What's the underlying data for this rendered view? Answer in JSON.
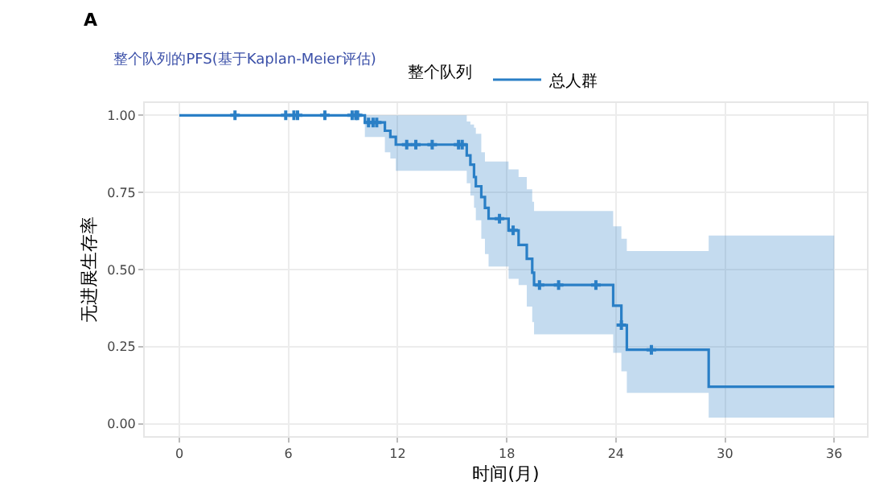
{
  "chart_data": {
    "type": "step",
    "title": "整个队列的PFS(基于Kaplan-Meier评估)",
    "xlabel": "时间(月)",
    "ylabel": "无进展生存率",
    "legend_title": "整个队列",
    "legend": "top",
    "grid": true,
    "annotations": [
      "A"
    ],
    "xlim": [
      -1.9,
      37.8
    ],
    "xticks": [
      0,
      6,
      12,
      18,
      24,
      30,
      36
    ],
    "ylim": [
      -0.04,
      1.04
    ],
    "yticks": [
      {
        "value": 0,
        "label": "0.00"
      },
      {
        "value": 0.25,
        "label": "0.25"
      },
      {
        "value": 0.5,
        "label": "0.50"
      },
      {
        "value": 0.75,
        "label": "0.75"
      },
      {
        "value": 1,
        "label": "1.00"
      }
    ],
    "series": [
      {
        "name": "总人群",
        "color": "#2a7fc6",
        "x": [
          0,
          10.2,
          11.3,
          11.6,
          11.9,
          15.8,
          16.0,
          16.2,
          16.3,
          16.6,
          16.8,
          17.0,
          18.1,
          18.65,
          19.1,
          19.4,
          19.5,
          23.85,
          24.3,
          24.6,
          29.1,
          36
        ],
        "values": [
          1,
          0.977,
          0.95,
          0.93,
          0.905,
          0.87,
          0.84,
          0.8,
          0.77,
          0.735,
          0.7,
          0.665,
          0.627,
          0.58,
          0.535,
          0.49,
          0.45,
          0.383,
          0.32,
          0.24,
          0.12,
          0.12
        ],
        "upper": [
          1,
          1,
          1,
          1,
          1,
          0.98,
          0.97,
          0.96,
          0.94,
          0.88,
          0.85,
          0.85,
          0.825,
          0.8,
          0.76,
          0.72,
          0.69,
          0.64,
          0.6,
          0.56,
          0.61,
          0.61
        ],
        "lower": [
          1,
          0.93,
          0.88,
          0.86,
          0.82,
          0.78,
          0.74,
          0.7,
          0.66,
          0.6,
          0.55,
          0.51,
          0.47,
          0.45,
          0.38,
          0.33,
          0.29,
          0.23,
          0.17,
          0.1,
          0.02,
          0.02
        ]
      },
      {
        "type": "scatter",
        "marker": "cross",
        "color": "#2a7fc6",
        "x": [
          3.06,
          5.85,
          6.3,
          6.5,
          8.0,
          9.5,
          9.7,
          9.8,
          10.4,
          10.65,
          10.85,
          12.5,
          13.0,
          13.9,
          15.35,
          15.55,
          17.6,
          18.35,
          19.8,
          20.85,
          22.9,
          24.3,
          25.95
        ],
        "values": [
          1,
          1,
          1,
          1,
          1,
          1,
          1,
          1,
          0.977,
          0.977,
          0.977,
          0.905,
          0.905,
          0.905,
          0.905,
          0.905,
          0.665,
          0.627,
          0.45,
          0.45,
          0.45,
          0.32,
          0.24
        ]
      }
    ]
  }
}
